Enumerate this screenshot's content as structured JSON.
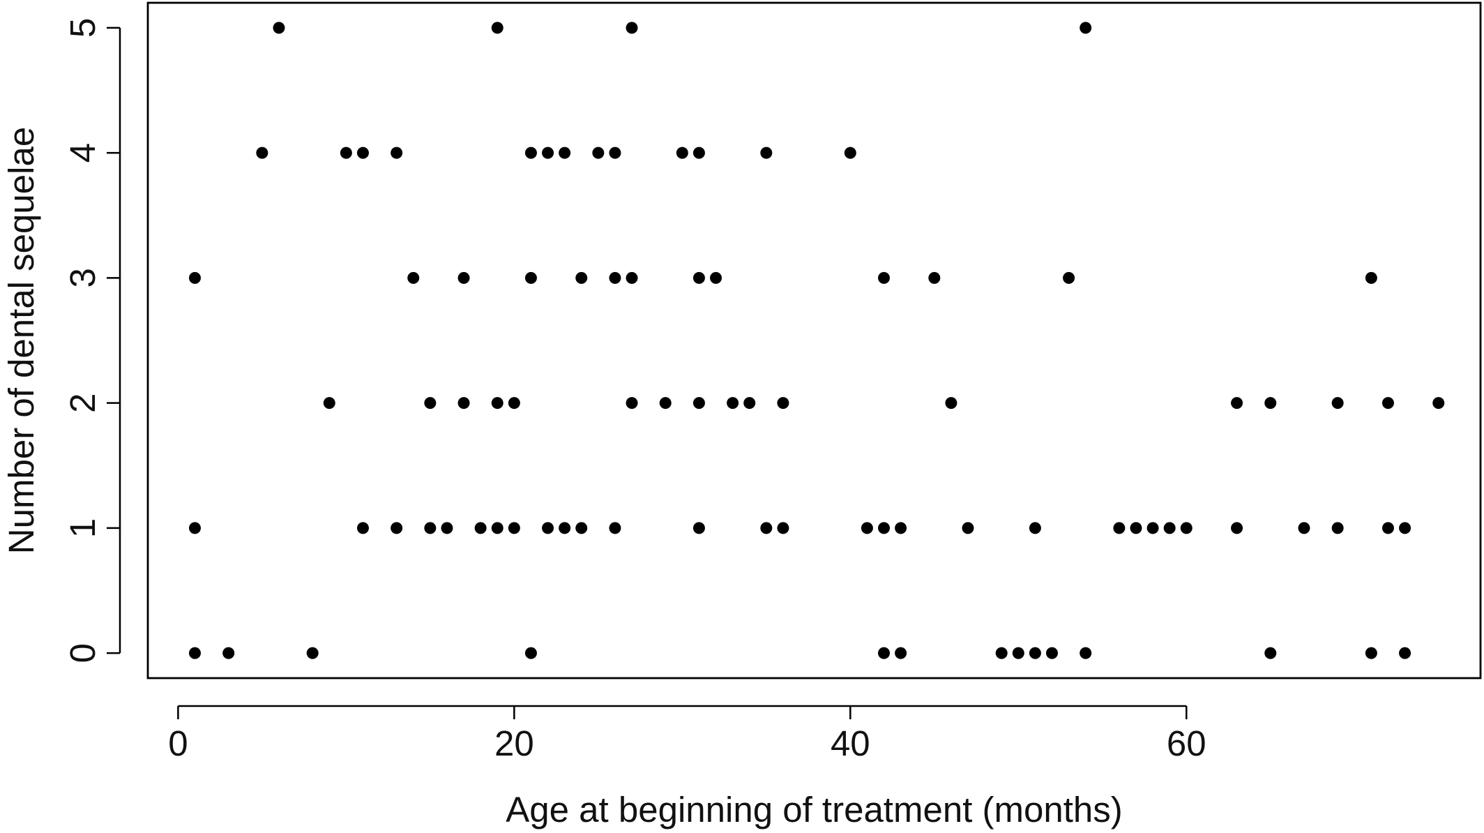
{
  "chart_data": {
    "type": "scatter",
    "title": "",
    "xlabel": "Age at beginning of treatment (months)",
    "ylabel": "Number of dental sequelae",
    "xlim": [
      -1.8,
      77.5
    ],
    "ylim": [
      -0.2,
      5.2
    ],
    "x_ticks": [
      0,
      20,
      40,
      60
    ],
    "y_ticks": [
      0,
      1,
      2,
      3,
      4,
      5
    ],
    "x_tick_labels": [
      "0",
      "20",
      "40",
      "60"
    ],
    "y_tick_labels": [
      "0",
      "1",
      "2",
      "3",
      "4",
      "5"
    ],
    "grid": false,
    "legend": "none",
    "marker_color": "#000000",
    "points": [
      {
        "x": 6,
        "y": 5
      },
      {
        "x": 19,
        "y": 5
      },
      {
        "x": 27,
        "y": 5
      },
      {
        "x": 54,
        "y": 5
      },
      {
        "x": 5,
        "y": 4
      },
      {
        "x": 10,
        "y": 4
      },
      {
        "x": 11,
        "y": 4
      },
      {
        "x": 13,
        "y": 4
      },
      {
        "x": 21,
        "y": 4
      },
      {
        "x": 22,
        "y": 4
      },
      {
        "x": 23,
        "y": 4
      },
      {
        "x": 25,
        "y": 4
      },
      {
        "x": 26,
        "y": 4
      },
      {
        "x": 30,
        "y": 4
      },
      {
        "x": 31,
        "y": 4
      },
      {
        "x": 35,
        "y": 4
      },
      {
        "x": 40,
        "y": 4
      },
      {
        "x": 1,
        "y": 3
      },
      {
        "x": 14,
        "y": 3
      },
      {
        "x": 17,
        "y": 3
      },
      {
        "x": 21,
        "y": 3
      },
      {
        "x": 24,
        "y": 3
      },
      {
        "x": 26,
        "y": 3
      },
      {
        "x": 27,
        "y": 3
      },
      {
        "x": 31,
        "y": 3
      },
      {
        "x": 32,
        "y": 3
      },
      {
        "x": 42,
        "y": 3
      },
      {
        "x": 45,
        "y": 3
      },
      {
        "x": 53,
        "y": 3
      },
      {
        "x": 71,
        "y": 3
      },
      {
        "x": 9,
        "y": 2
      },
      {
        "x": 15,
        "y": 2
      },
      {
        "x": 17,
        "y": 2
      },
      {
        "x": 19,
        "y": 2
      },
      {
        "x": 20,
        "y": 2
      },
      {
        "x": 27,
        "y": 2
      },
      {
        "x": 29,
        "y": 2
      },
      {
        "x": 31,
        "y": 2
      },
      {
        "x": 33,
        "y": 2
      },
      {
        "x": 34,
        "y": 2
      },
      {
        "x": 36,
        "y": 2
      },
      {
        "x": 46,
        "y": 2
      },
      {
        "x": 63,
        "y": 2
      },
      {
        "x": 65,
        "y": 2
      },
      {
        "x": 69,
        "y": 2
      },
      {
        "x": 72,
        "y": 2
      },
      {
        "x": 75,
        "y": 2
      },
      {
        "x": 1,
        "y": 1
      },
      {
        "x": 11,
        "y": 1
      },
      {
        "x": 13,
        "y": 1
      },
      {
        "x": 15,
        "y": 1
      },
      {
        "x": 16,
        "y": 1
      },
      {
        "x": 18,
        "y": 1
      },
      {
        "x": 19,
        "y": 1
      },
      {
        "x": 20,
        "y": 1
      },
      {
        "x": 22,
        "y": 1
      },
      {
        "x": 23,
        "y": 1
      },
      {
        "x": 24,
        "y": 1
      },
      {
        "x": 26,
        "y": 1
      },
      {
        "x": 31,
        "y": 1
      },
      {
        "x": 35,
        "y": 1
      },
      {
        "x": 36,
        "y": 1
      },
      {
        "x": 41,
        "y": 1
      },
      {
        "x": 42,
        "y": 1
      },
      {
        "x": 43,
        "y": 1
      },
      {
        "x": 47,
        "y": 1
      },
      {
        "x": 51,
        "y": 1
      },
      {
        "x": 56,
        "y": 1
      },
      {
        "x": 57,
        "y": 1
      },
      {
        "x": 58,
        "y": 1
      },
      {
        "x": 59,
        "y": 1
      },
      {
        "x": 60,
        "y": 1
      },
      {
        "x": 63,
        "y": 1
      },
      {
        "x": 67,
        "y": 1
      },
      {
        "x": 69,
        "y": 1
      },
      {
        "x": 72,
        "y": 1
      },
      {
        "x": 73,
        "y": 1
      },
      {
        "x": 1,
        "y": 0
      },
      {
        "x": 3,
        "y": 0
      },
      {
        "x": 8,
        "y": 0
      },
      {
        "x": 21,
        "y": 0
      },
      {
        "x": 42,
        "y": 0
      },
      {
        "x": 43,
        "y": 0
      },
      {
        "x": 49,
        "y": 0
      },
      {
        "x": 50,
        "y": 0
      },
      {
        "x": 51,
        "y": 0
      },
      {
        "x": 52,
        "y": 0
      },
      {
        "x": 54,
        "y": 0
      },
      {
        "x": 65,
        "y": 0
      },
      {
        "x": 71,
        "y": 0
      },
      {
        "x": 73,
        "y": 0
      }
    ]
  }
}
